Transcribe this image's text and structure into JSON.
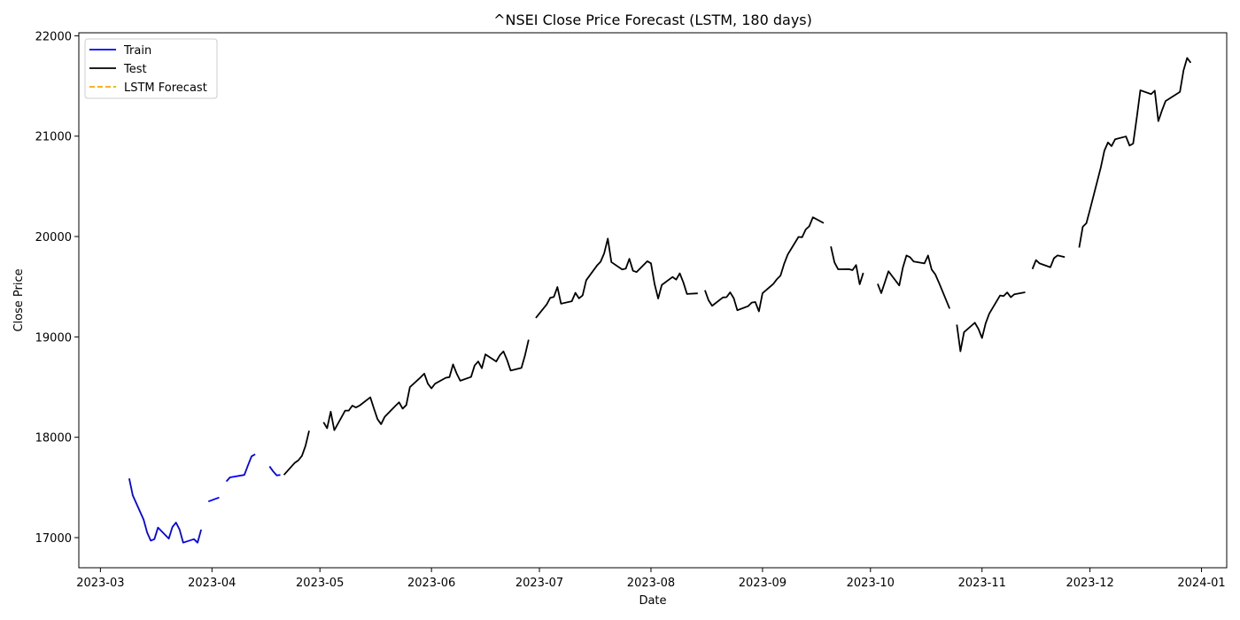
{
  "chart_data": {
    "type": "line",
    "title": "^NSEI Close Price Forecast (LSTM, 180 days)",
    "xlabel": "Date",
    "ylabel": "Close Price",
    "x_axis": "date",
    "xlim": [
      "2023-02-23",
      "2024-01-08"
    ],
    "ylim": [
      16700,
      22030
    ],
    "x_ticks": [
      "2023-03",
      "2023-04",
      "2023-05",
      "2023-06",
      "2023-07",
      "2023-08",
      "2023-09",
      "2023-10",
      "2023-11",
      "2023-12",
      "2024-01"
    ],
    "x_tick_dates": [
      "2023-03-01",
      "2023-04-01",
      "2023-05-01",
      "2023-06-01",
      "2023-07-01",
      "2023-08-01",
      "2023-09-01",
      "2023-10-01",
      "2023-11-01",
      "2023-12-01",
      "2024-01-01"
    ],
    "y_ticks": [
      17000,
      18000,
      19000,
      20000,
      21000,
      22000
    ],
    "grid": false,
    "legend": {
      "position": "top-left",
      "entries": [
        "Train",
        "Test",
        "LSTM Forecast"
      ]
    },
    "series": [
      {
        "name": "Train",
        "color": "#0000ff",
        "style": "solid",
        "segments": [
          [
            [
              "2023-03-09",
              17590
            ],
            [
              "2023-03-10",
              17420
            ],
            [
              "2023-03-13",
              17180
            ],
            [
              "2023-03-14",
              17050
            ],
            [
              "2023-03-15",
              16970
            ],
            [
              "2023-03-16",
              16985
            ],
            [
              "2023-03-17",
              17100
            ],
            [
              "2023-03-20",
              16990
            ],
            [
              "2023-03-21",
              17105
            ],
            [
              "2023-03-22",
              17150
            ],
            [
              "2023-03-23",
              17080
            ],
            [
              "2023-03-24",
              16950
            ],
            [
              "2023-03-27",
              16985
            ],
            [
              "2023-03-28",
              16950
            ],
            [
              "2023-03-29",
              17080
            ]
          ],
          [
            [
              "2023-03-31",
              17360
            ],
            [
              "2023-04-03",
              17400
            ]
          ],
          [
            [
              "2023-04-05",
              17560
            ],
            [
              "2023-04-06",
              17600
            ],
            [
              "2023-04-10",
              17625
            ],
            [
              "2023-04-11",
              17720
            ],
            [
              "2023-04-12",
              17810
            ],
            [
              "2023-04-13",
              17830
            ]
          ],
          [
            [
              "2023-04-17",
              17710
            ],
            [
              "2023-04-18",
              17660
            ],
            [
              "2023-04-19",
              17620
            ],
            [
              "2023-04-20",
              17625
            ]
          ]
        ]
      },
      {
        "name": "Test",
        "color": "#000000",
        "style": "solid",
        "segments": [
          [
            [
              "2023-04-21",
              17625
            ],
            [
              "2023-04-24",
              17745
            ],
            [
              "2023-04-25",
              17770
            ],
            [
              "2023-04-26",
              17815
            ],
            [
              "2023-04-27",
              17915
            ],
            [
              "2023-04-28",
              18065
            ]
          ],
          [
            [
              "2023-05-02",
              18150
            ],
            [
              "2023-05-03",
              18090
            ],
            [
              "2023-05-04",
              18255
            ],
            [
              "2023-05-05",
              18070
            ],
            [
              "2023-05-08",
              18265
            ],
            [
              "2023-05-09",
              18265
            ],
            [
              "2023-05-10",
              18315
            ],
            [
              "2023-05-11",
              18297
            ],
            [
              "2023-05-12",
              18315
            ],
            [
              "2023-05-15",
              18398
            ],
            [
              "2023-05-16",
              18287
            ],
            [
              "2023-05-17",
              18181
            ],
            [
              "2023-05-18",
              18130
            ],
            [
              "2023-05-19",
              18203
            ],
            [
              "2023-05-22",
              18314
            ],
            [
              "2023-05-23",
              18348
            ],
            [
              "2023-05-24",
              18285
            ],
            [
              "2023-05-25",
              18321
            ],
            [
              "2023-05-26",
              18499
            ],
            [
              "2023-05-29",
              18598
            ],
            [
              "2023-05-30",
              18634
            ],
            [
              "2023-05-31",
              18534
            ],
            [
              "2023-06-01",
              18487
            ],
            [
              "2023-06-02",
              18534
            ],
            [
              "2023-06-05",
              18593
            ],
            [
              "2023-06-06",
              18599
            ],
            [
              "2023-06-07",
              18726
            ],
            [
              "2023-06-08",
              18635
            ],
            [
              "2023-06-09",
              18563
            ],
            [
              "2023-06-12",
              18601
            ],
            [
              "2023-06-13",
              18716
            ],
            [
              "2023-06-14",
              18755
            ],
            [
              "2023-06-15",
              18688
            ],
            [
              "2023-06-16",
              18826
            ],
            [
              "2023-06-19",
              18755
            ],
            [
              "2023-06-20",
              18817
            ],
            [
              "2023-06-21",
              18856
            ],
            [
              "2023-06-22",
              18771
            ],
            [
              "2023-06-23",
              18665
            ],
            [
              "2023-06-26",
              18691
            ],
            [
              "2023-06-27",
              18817
            ],
            [
              "2023-06-28",
              18972
            ]
          ],
          [
            [
              "2023-06-30",
              19189
            ],
            [
              "2023-07-03",
              19322
            ],
            [
              "2023-07-04",
              19389
            ],
            [
              "2023-07-05",
              19398
            ],
            [
              "2023-07-06",
              19497
            ],
            [
              "2023-07-07",
              19331
            ],
            [
              "2023-07-10",
              19355
            ],
            [
              "2023-07-11",
              19439
            ],
            [
              "2023-07-12",
              19384
            ],
            [
              "2023-07-13",
              19413
            ],
            [
              "2023-07-14",
              19564
            ],
            [
              "2023-07-17",
              19711
            ],
            [
              "2023-07-18",
              19749
            ],
            [
              "2023-07-19",
              19833
            ],
            [
              "2023-07-20",
              19979
            ],
            [
              "2023-07-21",
              19745
            ],
            [
              "2023-07-24",
              19672
            ],
            [
              "2023-07-25",
              19680
            ],
            [
              "2023-07-26",
              19778
            ],
            [
              "2023-07-27",
              19659
            ],
            [
              "2023-07-28",
              19646
            ],
            [
              "2023-07-31",
              19754
            ],
            [
              "2023-08-01",
              19733
            ],
            [
              "2023-08-02",
              19527
            ],
            [
              "2023-08-03",
              19382
            ],
            [
              "2023-08-04",
              19517
            ],
            [
              "2023-08-07",
              19597
            ],
            [
              "2023-08-08",
              19571
            ],
            [
              "2023-08-09",
              19633
            ],
            [
              "2023-08-10",
              19543
            ],
            [
              "2023-08-11",
              19428
            ],
            [
              "2023-08-14",
              19434
            ]
          ],
          [
            [
              "2023-08-16",
              19465
            ],
            [
              "2023-08-17",
              19365
            ],
            [
              "2023-08-18",
              19310
            ],
            [
              "2023-08-21",
              19393
            ],
            [
              "2023-08-22",
              19396
            ],
            [
              "2023-08-23",
              19444
            ],
            [
              "2023-08-24",
              19386
            ],
            [
              "2023-08-25",
              19266
            ],
            [
              "2023-08-28",
              19306
            ],
            [
              "2023-08-29",
              19342
            ],
            [
              "2023-08-30",
              19347
            ],
            [
              "2023-08-31",
              19254
            ],
            [
              "2023-09-01",
              19435
            ],
            [
              "2023-09-04",
              19528
            ],
            [
              "2023-09-05",
              19575
            ],
            [
              "2023-09-06",
              19611
            ],
            [
              "2023-09-07",
              19727
            ],
            [
              "2023-09-08",
              19820
            ],
            [
              "2023-09-11",
              19996
            ],
            [
              "2023-09-12",
              19993
            ],
            [
              "2023-09-13",
              20070
            ],
            [
              "2023-09-14",
              20103
            ],
            [
              "2023-09-15",
              20192
            ],
            [
              "2023-09-18",
              20134
            ]
          ],
          [
            [
              "2023-09-20",
              19901
            ],
            [
              "2023-09-21",
              19742
            ],
            [
              "2023-09-22",
              19674
            ],
            [
              "2023-09-25",
              19675
            ],
            [
              "2023-09-26",
              19665
            ],
            [
              "2023-09-27",
              19716
            ],
            [
              "2023-09-28",
              19524
            ],
            [
              "2023-09-29",
              19638
            ]
          ],
          [
            [
              "2023-10-03",
              19529
            ],
            [
              "2023-10-04",
              19436
            ],
            [
              "2023-10-05",
              19545
            ],
            [
              "2023-10-06",
              19654
            ],
            [
              "2023-10-09",
              19512
            ],
            [
              "2023-10-10",
              19690
            ],
            [
              "2023-10-11",
              19811
            ],
            [
              "2023-10-12",
              19794
            ],
            [
              "2023-10-13",
              19751
            ],
            [
              "2023-10-16",
              19732
            ],
            [
              "2023-10-17",
              19811
            ],
            [
              "2023-10-18",
              19671
            ],
            [
              "2023-10-19",
              19624
            ],
            [
              "2023-10-20",
              19543
            ],
            [
              "2023-10-23",
              19282
            ]
          ],
          [
            [
              "2023-10-25",
              19122
            ],
            [
              "2023-10-26",
              18857
            ],
            [
              "2023-10-27",
              19047
            ],
            [
              "2023-10-30",
              19141
            ],
            [
              "2023-10-31",
              19080
            ],
            [
              "2023-11-01",
              18989
            ],
            [
              "2023-11-02",
              19134
            ],
            [
              "2023-11-03",
              19231
            ],
            [
              "2023-11-06",
              19412
            ],
            [
              "2023-11-07",
              19407
            ],
            [
              "2023-11-08",
              19443
            ],
            [
              "2023-11-09",
              19395
            ],
            [
              "2023-11-10",
              19425
            ],
            [
              "2023-11-13",
              19444
            ]
          ],
          [
            [
              "2023-11-15",
              19676
            ],
            [
              "2023-11-16",
              19765
            ],
            [
              "2023-11-17",
              19732
            ],
            [
              "2023-11-20",
              19694
            ],
            [
              "2023-11-21",
              19784
            ],
            [
              "2023-11-22",
              19812
            ],
            [
              "2023-11-24",
              19795
            ]
          ],
          [
            [
              "2023-11-28",
              19890
            ],
            [
              "2023-11-29",
              20097
            ],
            [
              "2023-11-30",
              20133
            ],
            [
              "2023-12-01",
              20268
            ],
            [
              "2023-12-04",
              20687
            ],
            [
              "2023-12-05",
              20855
            ],
            [
              "2023-12-06",
              20937
            ],
            [
              "2023-12-07",
              20901
            ],
            [
              "2023-12-08",
              20969
            ],
            [
              "2023-12-11",
              20997
            ],
            [
              "2023-12-12",
              20906
            ],
            [
              "2023-12-13",
              20926
            ],
            [
              "2023-12-14",
              21183
            ],
            [
              "2023-12-15",
              21457
            ],
            [
              "2023-12-18",
              21419
            ],
            [
              "2023-12-19",
              21453
            ],
            [
              "2023-12-20",
              21150
            ],
            [
              "2023-12-21",
              21255
            ],
            [
              "2023-12-22",
              21349
            ],
            [
              "2023-12-26",
              21441
            ],
            [
              "2023-12-27",
              21655
            ],
            [
              "2023-12-28",
              21779
            ],
            [
              "2023-12-29",
              21731
            ]
          ]
        ]
      },
      {
        "name": "LSTM Forecast",
        "color": "#ffa500",
        "style": "dashed",
        "segments": []
      }
    ]
  }
}
